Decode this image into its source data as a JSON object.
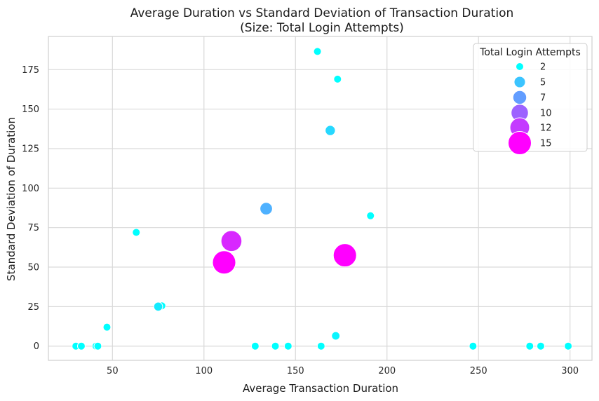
{
  "chart_data": {
    "type": "scatter",
    "title": "Average Duration vs Standard Deviation of Transaction Duration",
    "subtitle": "(Size: Total Login Attempts)",
    "xlabel": "Average Transaction Duration",
    "ylabel": "Standard Deviation of Duration",
    "xlim": [
      15,
      312
    ],
    "ylim": [
      -9,
      196
    ],
    "xticks": [
      50,
      100,
      150,
      200,
      250,
      300
    ],
    "yticks": [
      0,
      25,
      50,
      75,
      100,
      125,
      150,
      175
    ],
    "grid": true,
    "legend": {
      "title": "Total Login Attempts",
      "placement": "top-right",
      "entries": [
        {
          "label": "2",
          "size_value": 2
        },
        {
          "label": "5",
          "size_value": 5
        },
        {
          "label": "7",
          "size_value": 7
        },
        {
          "label": "10",
          "size_value": 10
        },
        {
          "label": "12",
          "size_value": 12
        },
        {
          "label": "15",
          "size_value": 15
        }
      ]
    },
    "colormap": {
      "min_color": "#00ffff",
      "max_color": "#ff00ff",
      "min_value": 2,
      "max_value": 15
    },
    "points": [
      {
        "x": 30,
        "y": 0,
        "size": 2
      },
      {
        "x": 33,
        "y": 0,
        "size": 2
      },
      {
        "x": 41,
        "y": 0,
        "size": 2
      },
      {
        "x": 42,
        "y": 0,
        "size": 2
      },
      {
        "x": 47,
        "y": 12,
        "size": 2
      },
      {
        "x": 63,
        "y": 72,
        "size": 2
      },
      {
        "x": 75,
        "y": 25,
        "size": 3
      },
      {
        "x": 77,
        "y": 25.5,
        "size": 2
      },
      {
        "x": 111,
        "y": 53,
        "size": 15
      },
      {
        "x": 115,
        "y": 66.5,
        "size": 13
      },
      {
        "x": 128,
        "y": 0,
        "size": 2
      },
      {
        "x": 134,
        "y": 87,
        "size": 6
      },
      {
        "x": 139,
        "y": 0,
        "size": 2
      },
      {
        "x": 146,
        "y": 0,
        "size": 2
      },
      {
        "x": 162,
        "y": 186.5,
        "size": 2
      },
      {
        "x": 164,
        "y": 0,
        "size": 2
      },
      {
        "x": 169,
        "y": 136.5,
        "size": 4
      },
      {
        "x": 172,
        "y": 6.5,
        "size": 2.5
      },
      {
        "x": 173,
        "y": 169,
        "size": 2
      },
      {
        "x": 177,
        "y": 57.5,
        "size": 15
      },
      {
        "x": 191,
        "y": 82.5,
        "size": 2
      },
      {
        "x": 247,
        "y": 0,
        "size": 2
      },
      {
        "x": 278,
        "y": 0,
        "size": 2
      },
      {
        "x": 284,
        "y": 0,
        "size": 2
      },
      {
        "x": 299,
        "y": 0,
        "size": 2
      }
    ]
  }
}
